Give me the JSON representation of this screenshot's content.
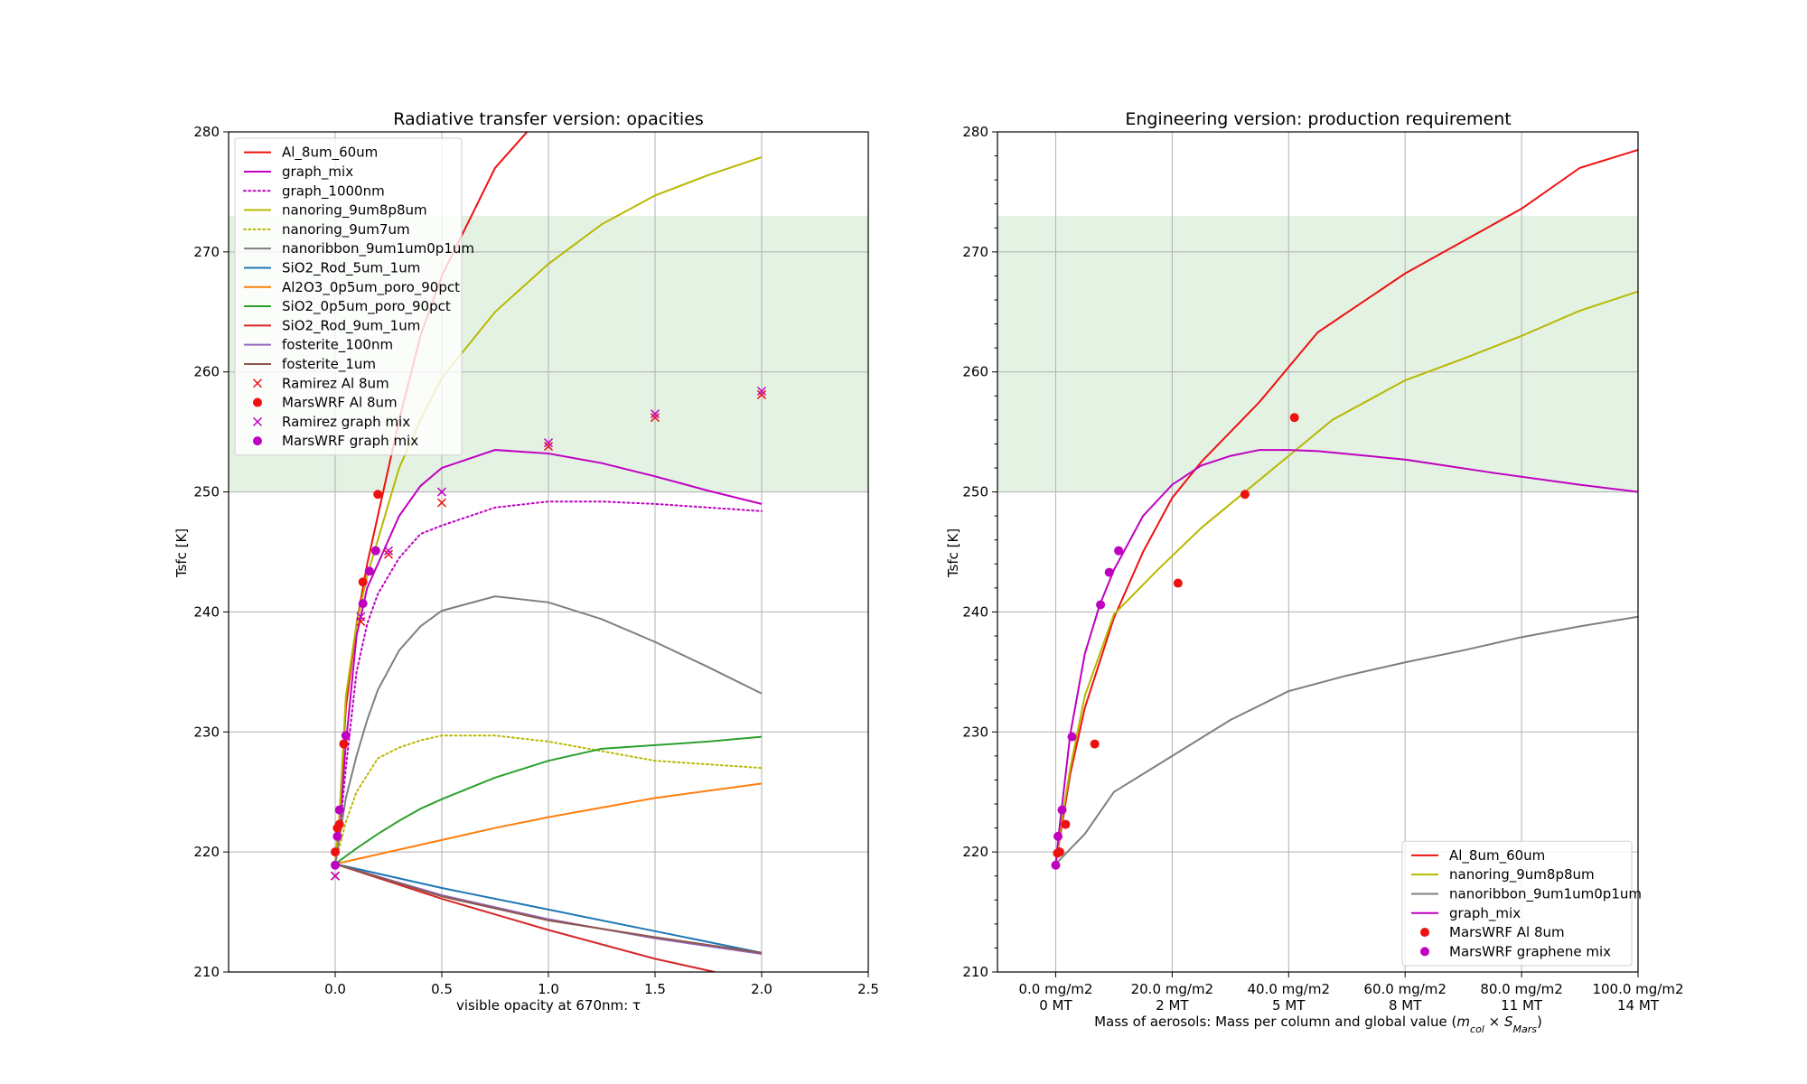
{
  "figure": {
    "left_panel_title": "Radiative transfer version: opacities",
    "right_panel_title": "Engineering version: production requirement"
  },
  "chart_data": [
    {
      "type": "line",
      "title": "Radiative transfer version: opacities",
      "xlabel": "visible opacity at 670nm: τ",
      "ylabel": "Tsfc [K]",
      "xlim": [
        -0.5,
        2.5
      ],
      "ylim": [
        210,
        280
      ],
      "xticks": [
        "0.0",
        "0.5",
        "1.0",
        "1.5",
        "2.0",
        "2.5"
      ],
      "yticks": [
        "210",
        "220",
        "230",
        "240",
        "250",
        "260",
        "270",
        "280"
      ],
      "grid": true,
      "band": {
        "y": [
          250,
          273
        ],
        "color": "#e4f2e4"
      },
      "legend_position": "upper-left",
      "series": [
        {
          "name": "Al_8um_60um",
          "color": "#ee1111",
          "style": "solid",
          "x": [
            0,
            0.02,
            0.05,
            0.1,
            0.15,
            0.2,
            0.3,
            0.4,
            0.5,
            0.75,
            1.0
          ],
          "y": [
            219,
            223,
            232,
            239,
            244,
            248,
            256,
            263,
            268,
            277,
            282
          ]
        },
        {
          "name": "graph_mix",
          "color": "#c000c0",
          "style": "solid",
          "x": [
            0,
            0.02,
            0.05,
            0.1,
            0.15,
            0.2,
            0.3,
            0.4,
            0.5,
            0.75,
            1.0,
            1.25,
            1.5,
            1.75,
            2.0
          ],
          "y": [
            219,
            222,
            229,
            238,
            242,
            244,
            248,
            250.5,
            252,
            253.5,
            253.2,
            252.4,
            251.3,
            250.1,
            249
          ]
        },
        {
          "name": "graph_1000nm",
          "color": "#c000c0",
          "style": "dotted",
          "x": [
            0,
            0.02,
            0.05,
            0.1,
            0.15,
            0.2,
            0.3,
            0.4,
            0.5,
            0.75,
            1.0,
            1.25,
            1.5,
            1.75,
            2.0
          ],
          "y": [
            219,
            221.5,
            227,
            235,
            239,
            241.5,
            244.5,
            246.5,
            247.2,
            248.7,
            249.2,
            249.2,
            249.0,
            248.7,
            248.4
          ]
        },
        {
          "name": "nanoring_9um8p8um",
          "color": "#b8b800",
          "style": "solid",
          "x": [
            0,
            0.02,
            0.05,
            0.1,
            0.15,
            0.2,
            0.3,
            0.4,
            0.5,
            0.75,
            1.0,
            1.25,
            1.5,
            1.75,
            2.0
          ],
          "y": [
            219,
            223,
            233,
            239,
            243,
            246,
            252,
            256,
            259.5,
            265,
            269,
            272.3,
            274.7,
            276.4,
            277.9
          ]
        },
        {
          "name": "nanoring_9um7um",
          "color": "#b8b800",
          "style": "dotted",
          "x": [
            0,
            0.05,
            0.1,
            0.2,
            0.3,
            0.4,
            0.5,
            0.75,
            1.0,
            1.25,
            1.5,
            1.75,
            2.0
          ],
          "y": [
            219,
            222.5,
            225,
            227.8,
            228.7,
            229.3,
            229.7,
            229.7,
            229.2,
            228.4,
            227.6,
            227.3,
            227.0
          ]
        },
        {
          "name": "nanoribbon_9um1um0p1um",
          "color": "#7f7f7f",
          "style": "solid",
          "x": [
            0,
            0.05,
            0.1,
            0.15,
            0.2,
            0.3,
            0.4,
            0.5,
            0.75,
            1.0,
            1.25,
            1.5,
            1.75,
            2.0
          ],
          "y": [
            219,
            224.5,
            228,
            231,
            233.5,
            236.8,
            238.8,
            240.1,
            241.3,
            240.8,
            239.4,
            237.5,
            235.4,
            233.2
          ]
        },
        {
          "name": "SiO2_Rod_5um_1um",
          "color": "#1f77b4",
          "style": "solid",
          "x": [
            0,
            0.5,
            1.0,
            1.5,
            2.0
          ],
          "y": [
            219,
            217,
            215.2,
            213.4,
            211.6
          ]
        },
        {
          "name": "Al2O3_0p5um_poro_90pct",
          "color": "#ff7f0e",
          "style": "solid",
          "x": [
            0,
            0.25,
            0.5,
            0.75,
            1.0,
            1.25,
            1.5,
            1.75,
            2.0
          ],
          "y": [
            219,
            220,
            221,
            222,
            222.9,
            223.7,
            224.5,
            225.1,
            225.7
          ]
        },
        {
          "name": "SiO2_0p5um_poro_90pct",
          "color": "#2ca02c",
          "style": "solid",
          "x": [
            0,
            0.1,
            0.2,
            0.3,
            0.4,
            0.5,
            0.75,
            1.0,
            1.25,
            1.5,
            1.75,
            2.0
          ],
          "y": [
            219,
            220.3,
            221.5,
            222.6,
            223.6,
            224.4,
            226.2,
            227.6,
            228.6,
            228.9,
            229.2,
            229.6
          ]
        },
        {
          "name": "SiO2_Rod_9um_1um",
          "color": "#d62728",
          "style": "solid",
          "x": [
            0,
            0.5,
            1.0,
            1.5,
            1.78
          ],
          "y": [
            219,
            216.1,
            213.5,
            211.1,
            210
          ]
        },
        {
          "name": "fosterite_100nm",
          "color": "#9467bd",
          "style": "solid",
          "x": [
            0,
            0.5,
            1.0,
            1.5,
            2.0
          ],
          "y": [
            219,
            216.4,
            214.4,
            212.8,
            211.5
          ]
        },
        {
          "name": "fosterite_1um",
          "color": "#8c564b",
          "style": "solid",
          "x": [
            0,
            0.5,
            1.0,
            1.5,
            2.0
          ],
          "y": [
            219,
            216.3,
            214.3,
            212.9,
            211.6
          ]
        }
      ],
      "scatter": [
        {
          "name": "Ramirez Al 8um",
          "color": "#ee1111",
          "marker": "x",
          "x": [
            0,
            0.12,
            0.25,
            0.5,
            1.0,
            1.5,
            2.0
          ],
          "y": [
            218,
            239.2,
            244.8,
            249.1,
            253.8,
            256.2,
            258.1
          ]
        },
        {
          "name": "MarsWRF Al 8um",
          "color": "#ee1111",
          "marker": "o",
          "x": [
            0.0,
            0.01,
            0.02,
            0.04,
            0.13,
            0.2
          ],
          "y": [
            220,
            222,
            222.3,
            229,
            242.5,
            249.8
          ]
        },
        {
          "name": "Ramirez graph mix",
          "color": "#c000c0",
          "marker": "x",
          "x": [
            0,
            0.12,
            0.25,
            0.5,
            1.0,
            1.5,
            2.0
          ],
          "y": [
            218,
            239.6,
            245.1,
            250.0,
            254.1,
            256.5,
            258.4
          ]
        },
        {
          "name": "MarsWRF graph mix",
          "color": "#c000c0",
          "marker": "o",
          "x": [
            0.0,
            0.01,
            0.02,
            0.05,
            0.13,
            0.16,
            0.19
          ],
          "y": [
            218.9,
            221.3,
            223.5,
            229.7,
            240.7,
            243.4,
            245.1
          ]
        }
      ]
    },
    {
      "type": "line",
      "title": "Engineering version: production requirement",
      "xlabel_main": "Mass of aerosols: Mass per column and global value (",
      "xlabel_m": "m",
      "xlabel_col": "col",
      "xlabel_times": " × ",
      "xlabel_s": "S",
      "xlabel_mars": "Mars",
      "xlabel_close": ")",
      "ylabel": "Tsfc [K]",
      "xlim": [
        -10,
        100
      ],
      "ylim": [
        210,
        280
      ],
      "xticks_line1": [
        "0.0 mg/m2",
        "20.0 mg/m2",
        "40.0 mg/m2",
        "60.0 mg/m2",
        "80.0 mg/m2",
        "100.0 mg/m2"
      ],
      "xticks_line2": [
        "0 MT",
        "2 MT",
        "5 MT",
        "8 MT",
        "11 MT",
        "14 MT"
      ],
      "xtick_values": [
        0,
        20,
        40,
        60,
        80,
        100
      ],
      "yticks": [
        "210",
        "220",
        "230",
        "240",
        "250",
        "260",
        "270",
        "280"
      ],
      "grid": true,
      "band": {
        "y": [
          250,
          273
        ],
        "color": "#e4f2e4"
      },
      "legend_position": "lower-right",
      "series": [
        {
          "name": "Al_8um_60um",
          "color": "#ee1111",
          "style": "solid",
          "x": [
            0,
            1,
            2.5,
            5,
            10,
            15,
            20,
            25,
            35,
            45,
            60,
            80,
            90,
            100
          ],
          "y": [
            219,
            222,
            226.5,
            232,
            239.5,
            245,
            249.5,
            252.5,
            257.5,
            263.3,
            268.2,
            273.6,
            277,
            278.5
          ]
        },
        {
          "name": "nanoring_9um8p8um",
          "color": "#b8b800",
          "style": "solid",
          "x": [
            0,
            1,
            2.5,
            5,
            10,
            17.5,
            25,
            32.5,
            40,
            47.5,
            60,
            70,
            80,
            90,
            100
          ],
          "y": [
            219,
            222.5,
            227,
            233,
            239.8,
            243.5,
            247,
            250,
            253,
            256,
            259.3,
            261.1,
            263,
            265.1,
            266.7
          ]
        },
        {
          "name": "nanoribbon_9um1um0p1um",
          "color": "#7f7f7f",
          "style": "solid",
          "x": [
            0,
            5,
            10,
            20,
            30,
            40,
            50,
            60,
            70,
            80,
            90,
            100
          ],
          "y": [
            219,
            221.5,
            225,
            228,
            231,
            233.4,
            234.7,
            235.8,
            236.8,
            237.9,
            238.8,
            239.6
          ]
        },
        {
          "name": "graph_mix",
          "color": "#c000c0",
          "style": "solid",
          "x": [
            0,
            0.5,
            1,
            2.5,
            5,
            7.5,
            10,
            15,
            20,
            25,
            30,
            35,
            40,
            45,
            60,
            75,
            90,
            100
          ],
          "y": [
            219,
            221.4,
            223.5,
            229.8,
            236.5,
            240.5,
            243.5,
            248,
            250.6,
            252.2,
            253,
            253.5,
            253.5,
            253.4,
            252.7,
            251.6,
            250.6,
            250
          ]
        }
      ],
      "scatter": [
        {
          "name": "MarsWRF Al 8um",
          "color": "#ee1111",
          "marker": "o",
          "x": [
            0.3,
            0.7,
            1.7,
            6.7,
            21,
            32.5,
            41
          ],
          "y": [
            219.9,
            220,
            222.3,
            229,
            242.4,
            249.8,
            256.2
          ]
        },
        {
          "name": "MarsWRF graphene mix",
          "color": "#c000c0",
          "marker": "o",
          "x": [
            0,
            0.4,
            1.1,
            2.8,
            7.7,
            9.2,
            10.8
          ],
          "y": [
            218.9,
            221.3,
            223.5,
            229.6,
            240.6,
            243.3,
            245.1
          ]
        }
      ]
    }
  ]
}
